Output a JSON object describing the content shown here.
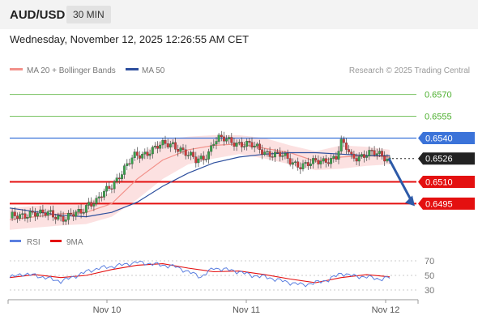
{
  "header": {
    "symbol": "AUD/USD",
    "timeframe": "30 MIN",
    "timestamp": "Wednesday, November 12, 2025 12:26:55 AM CET"
  },
  "legend": {
    "ma20": "MA 20 + Bollinger Bands",
    "ma50": "MA 50",
    "copyright": "Research © 2025 Trading Central",
    "rsi": "RSI",
    "rsi_ma": "9MA"
  },
  "colors": {
    "ma20": "#f2918a",
    "ma50": "#2d4f9e",
    "bollinger_fill": "#fbdcdc",
    "candle_up": "#39a24a",
    "candle_down": "#d23a3a",
    "resistance": "#4caf2e",
    "pivot": "#3b73d9",
    "support": "#e41010",
    "current": "#222222",
    "rsi": "#5b7fe0",
    "rsi_ma": "#e41010",
    "arrow": "#2d5aa8"
  },
  "chart_data": [
    {
      "type": "candlestick",
      "title": "AUD/USD 30 MIN",
      "x_labels": [
        "Nov 10",
        "Nov 11",
        "Nov 12"
      ],
      "ylim": [
        0.6478,
        0.6582
      ],
      "price_levels": [
        {
          "value": 0.657,
          "label": "0.6570",
          "kind": "resistance"
        },
        {
          "value": 0.6555,
          "label": "0.6555",
          "kind": "resistance"
        },
        {
          "value": 0.654,
          "label": "0.6540",
          "kind": "pivot"
        },
        {
          "value": 0.6526,
          "label": "0.6526",
          "kind": "current"
        },
        {
          "value": 0.651,
          "label": "0.6510",
          "kind": "support"
        },
        {
          "value": 0.6495,
          "label": "0.6495",
          "kind": "support"
        }
      ],
      "close_path": [
        [
          0,
          0.6485
        ],
        [
          4,
          0.6487
        ],
        [
          8,
          0.6489
        ],
        [
          12,
          0.6487
        ],
        [
          16,
          0.6489
        ],
        [
          20,
          0.6486
        ],
        [
          22,
          0.6484
        ],
        [
          25,
          0.6487
        ],
        [
          28,
          0.649
        ],
        [
          31,
          0.6496
        ],
        [
          34,
          0.6496
        ],
        [
          37,
          0.6502
        ],
        [
          40,
          0.6508
        ],
        [
          43,
          0.6515
        ],
        [
          46,
          0.6521
        ],
        [
          49,
          0.6527
        ],
        [
          52,
          0.6529
        ],
        [
          55,
          0.6532
        ],
        [
          58,
          0.6534
        ],
        [
          61,
          0.6535
        ],
        [
          64,
          0.6536
        ],
        [
          67,
          0.6533
        ],
        [
          70,
          0.6528
        ],
        [
          73,
          0.6524
        ],
        [
          76,
          0.6527
        ],
        [
          78,
          0.6531
        ],
        [
          80,
          0.6538
        ],
        [
          82,
          0.6539
        ],
        [
          86,
          0.6538
        ],
        [
          90,
          0.6537
        ],
        [
          94,
          0.6535
        ],
        [
          98,
          0.6532
        ],
        [
          102,
          0.653
        ],
        [
          106,
          0.6528
        ],
        [
          110,
          0.6524
        ],
        [
          114,
          0.6522
        ],
        [
          118,
          0.6522
        ],
        [
          122,
          0.6524
        ],
        [
          125,
          0.6526
        ],
        [
          128,
          0.6527
        ],
        [
          130,
          0.6536
        ],
        [
          132,
          0.6533
        ],
        [
          134,
          0.6527
        ],
        [
          137,
          0.6528
        ],
        [
          140,
          0.6529
        ],
        [
          143,
          0.6529
        ],
        [
          146,
          0.6528
        ],
        [
          149,
          0.6526
        ]
      ],
      "indicators": {
        "ma20": [
          [
            0,
            0.6484
          ],
          [
            20,
            0.6488
          ],
          [
            30,
            0.6489
          ],
          [
            40,
            0.6495
          ],
          [
            50,
            0.6512
          ],
          [
            60,
            0.6525
          ],
          [
            70,
            0.6532
          ],
          [
            80,
            0.6535
          ],
          [
            90,
            0.6536
          ],
          [
            100,
            0.6533
          ],
          [
            110,
            0.653
          ],
          [
            120,
            0.6524
          ],
          [
            130,
            0.6527
          ],
          [
            140,
            0.6528
          ],
          [
            149,
            0.6527
          ]
        ],
        "ma50": [
          [
            0,
            0.6492
          ],
          [
            12,
            0.6489
          ],
          [
            20,
            0.6487
          ],
          [
            30,
            0.6486
          ],
          [
            40,
            0.6489
          ],
          [
            50,
            0.6496
          ],
          [
            60,
            0.6507
          ],
          [
            70,
            0.6516
          ],
          [
            80,
            0.6523
          ],
          [
            90,
            0.6527
          ],
          [
            100,
            0.6529
          ],
          [
            110,
            0.653
          ],
          [
            120,
            0.653
          ],
          [
            130,
            0.6529
          ],
          [
            140,
            0.6528
          ],
          [
            149,
            0.6528
          ]
        ],
        "bollinger_upper": [
          [
            0,
            0.6492
          ],
          [
            20,
            0.6495
          ],
          [
            30,
            0.6496
          ],
          [
            40,
            0.6503
          ],
          [
            50,
            0.6527
          ],
          [
            60,
            0.6539
          ],
          [
            70,
            0.6541
          ],
          [
            80,
            0.6542
          ],
          [
            90,
            0.6542
          ],
          [
            100,
            0.654
          ],
          [
            110,
            0.6535
          ],
          [
            120,
            0.6531
          ],
          [
            130,
            0.6535
          ],
          [
            140,
            0.6534
          ],
          [
            149,
            0.6532
          ]
        ],
        "bollinger_lower": [
          [
            0,
            0.6477
          ],
          [
            20,
            0.648
          ],
          [
            30,
            0.6481
          ],
          [
            40,
            0.6486
          ],
          [
            50,
            0.6498
          ],
          [
            60,
            0.6512
          ],
          [
            70,
            0.6522
          ],
          [
            80,
            0.6526
          ],
          [
            90,
            0.6529
          ],
          [
            100,
            0.6526
          ],
          [
            110,
            0.6522
          ],
          [
            120,
            0.6518
          ],
          [
            130,
            0.6519
          ],
          [
            140,
            0.6521
          ],
          [
            149,
            0.6522
          ]
        ]
      },
      "projection": {
        "from": 0.6526,
        "to": 0.6495
      }
    },
    {
      "type": "line",
      "title": "RSI",
      "ylim": [
        20,
        80
      ],
      "yticks": [
        70,
        50,
        30
      ],
      "series": [
        {
          "name": "RSI",
          "values": [
            [
              0,
              47
            ],
            [
              5,
              52
            ],
            [
              10,
              50
            ],
            [
              15,
              46
            ],
            [
              20,
              42
            ],
            [
              25,
              48
            ],
            [
              30,
              55
            ],
            [
              35,
              60
            ],
            [
              40,
              62
            ],
            [
              45,
              65
            ],
            [
              50,
              68
            ],
            [
              55,
              66
            ],
            [
              60,
              64
            ],
            [
              65,
              62
            ],
            [
              70,
              55
            ],
            [
              75,
              48
            ],
            [
              80,
              60
            ],
            [
              85,
              58
            ],
            [
              90,
              55
            ],
            [
              95,
              50
            ],
            [
              100,
              48
            ],
            [
              105,
              44
            ],
            [
              110,
              40
            ],
            [
              115,
              37
            ],
            [
              120,
              40
            ],
            [
              125,
              44
            ],
            [
              130,
              53
            ],
            [
              135,
              49
            ],
            [
              140,
              48
            ],
            [
              145,
              45
            ],
            [
              149,
              47
            ]
          ]
        },
        {
          "name": "9MA",
          "values": [
            [
              0,
              47
            ],
            [
              10,
              51
            ],
            [
              20,
              47
            ],
            [
              30,
              50
            ],
            [
              40,
              58
            ],
            [
              50,
              64
            ],
            [
              60,
              66
            ],
            [
              70,
              60
            ],
            [
              80,
              55
            ],
            [
              90,
              56
            ],
            [
              100,
              51
            ],
            [
              110,
              45
            ],
            [
              120,
              40
            ],
            [
              130,
              47
            ],
            [
              140,
              51
            ],
            [
              149,
              48
            ]
          ]
        }
      ]
    }
  ]
}
